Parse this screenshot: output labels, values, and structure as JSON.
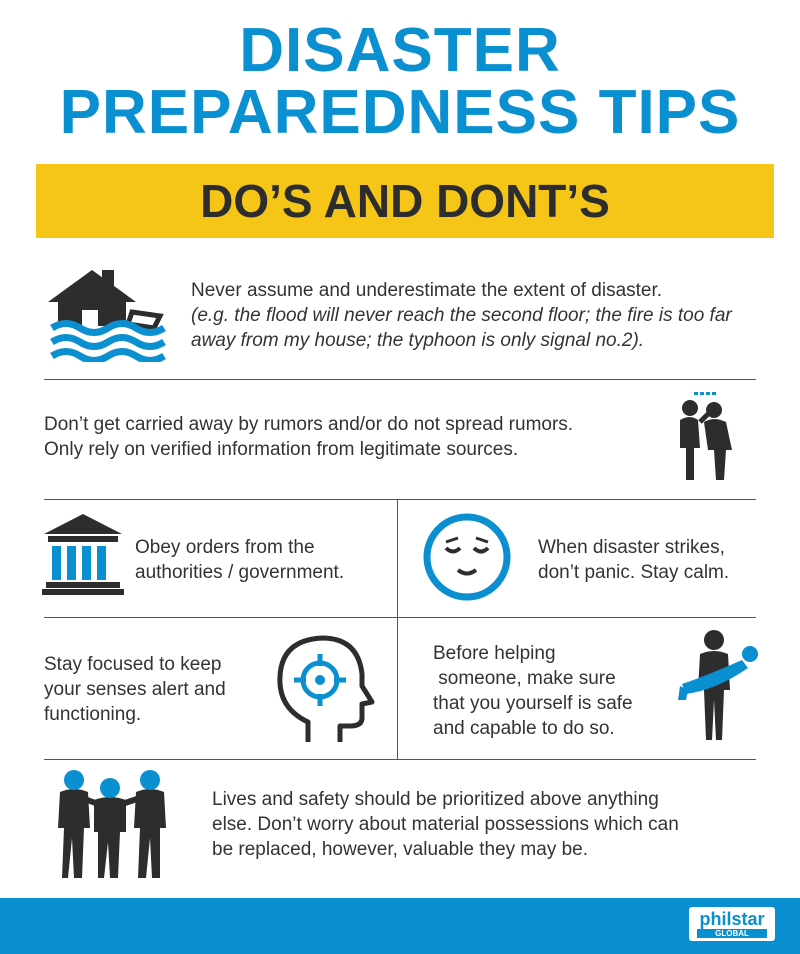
{
  "title": {
    "line1": "DISASTER",
    "line2": "PREPAREDNESS TIPS"
  },
  "banner": {
    "text": "DO’S AND DONT’S"
  },
  "tips": {
    "flood": {
      "main": "Never assume and underestimate the extent of disaster.",
      "example": "(e.g. the flood will never reach the second floor; the fire is too far away from my house; the typhoon is only signal no.2)."
    },
    "rumors": {
      "line1": "Don’t get carried away by rumors and/or do not spread rumors.",
      "line2": "Only rely on verified information from legitimate sources."
    },
    "authorities": {
      "line1": "Obey orders from the",
      "line2": "authorities / government."
    },
    "calm": {
      "line1": "When disaster strikes,",
      "line2": "don’t panic. Stay calm."
    },
    "focus": {
      "line1": "Stay focused to keep",
      "line2": "your senses alert and",
      "line3": "functioning."
    },
    "helping": {
      "line1": "Before helping",
      "line2": " someone, make sure",
      "line3": "that you yourself is safe",
      "line4": "and capable to do so."
    },
    "lives": {
      "line1": "Lives and safety should be prioritized above anything",
      "line2": "else. Don’t worry about material possessions which can",
      "line3": "be replaced, however, valuable they may be."
    }
  },
  "icons": [
    "flooded-house-icon",
    "gossip-people-icon",
    "government-building-icon",
    "calm-face-icon",
    "focused-head-icon",
    "rescuer-carrying-person-icon",
    "group-hug-icon"
  ],
  "logo": {
    "name": "philstar",
    "sub": "GLOBAL"
  },
  "colors": {
    "accent": "#0a8fd0",
    "banner": "#f5c518",
    "icon_dark": "#2d2d2d"
  }
}
